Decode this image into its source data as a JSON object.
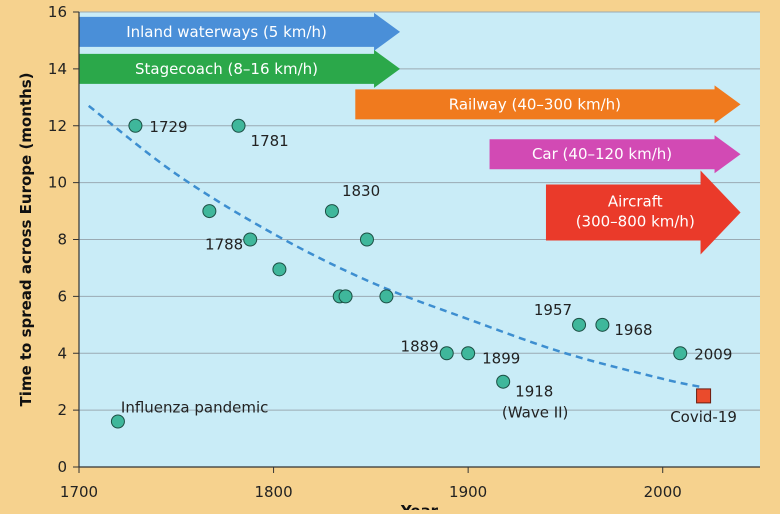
{
  "chart_data": {
    "type": "scatter",
    "xlabel": "Year",
    "ylabel": "Time to spread across Europe (months)",
    "xlim": [
      1700,
      2050
    ],
    "ylim": [
      0,
      16
    ],
    "xticks": [
      1700,
      1800,
      1900,
      2000
    ],
    "yticks": [
      0,
      2,
      4,
      6,
      8,
      10,
      12,
      14,
      16
    ],
    "grid": "horizontal",
    "colors": {
      "plot_background": "#c9ecf7",
      "outer_background": "#f6d28e",
      "point_fill": "#3fb79b",
      "covid_fill": "#ea4b2c",
      "trend_line": "#3d8ed0",
      "gridline": "#9aaab3"
    },
    "series": [
      {
        "name": "Influenza pandemic",
        "points": [
          {
            "x": 1720,
            "y": 1.6,
            "label": "Influenza pandemic"
          },
          {
            "x": 1729,
            "y": 12.0,
            "label": "1729"
          },
          {
            "x": 1767,
            "y": 9.0,
            "label": ""
          },
          {
            "x": 1782,
            "y": 12.0,
            "label": "1781"
          },
          {
            "x": 1788,
            "y": 8.0,
            "label": "1788"
          },
          {
            "x": 1803,
            "y": 6.95,
            "label": ""
          },
          {
            "x": 1830,
            "y": 9.0,
            "label": "1830"
          },
          {
            "x": 1834,
            "y": 6.0,
            "label": ""
          },
          {
            "x": 1837,
            "y": 6.0,
            "label": ""
          },
          {
            "x": 1848,
            "y": 8.0,
            "label": ""
          },
          {
            "x": 1858,
            "y": 6.0,
            "label": ""
          },
          {
            "x": 1889,
            "y": 4.0,
            "label": "1889"
          },
          {
            "x": 1900,
            "y": 4.0,
            "label": "1899"
          },
          {
            "x": 1918,
            "y": 3.0,
            "label": "1918"
          },
          {
            "x": 1957,
            "y": 5.0,
            "label": "1957"
          },
          {
            "x": 1969,
            "y": 5.0,
            "label": "1968"
          },
          {
            "x": 2009,
            "y": 4.0,
            "label": "2009"
          }
        ]
      },
      {
        "name": "Covid-19",
        "points": [
          {
            "x": 2021,
            "y": 2.5,
            "label": "Covid-19"
          }
        ]
      }
    ],
    "annotations": {
      "wave": "(Wave II)"
    },
    "trend": {
      "style": "dashed",
      "points": [
        {
          "x": 1705,
          "y": 12.7
        },
        {
          "x": 1750,
          "y": 10.3
        },
        {
          "x": 1800,
          "y": 8.2
        },
        {
          "x": 1850,
          "y": 6.5
        },
        {
          "x": 1900,
          "y": 5.2
        },
        {
          "x": 1950,
          "y": 4.0
        },
        {
          "x": 2000,
          "y": 3.1
        },
        {
          "x": 2021,
          "y": 2.8
        }
      ]
    },
    "transport_arrows": [
      {
        "label": "Inland waterways (5 km/h)",
        "color": "#4a8fd8",
        "x_start": 1700,
        "x_end": 1865,
        "y": 15.3
      },
      {
        "label": "Stagecoach (8–16 km/h)",
        "color": "#2ba84a",
        "x_start": 1700,
        "x_end": 1865,
        "y": 14.0
      },
      {
        "label": "Railway (40–300 km/h)",
        "color": "#f07a1e",
        "x_start": 1842,
        "x_end": 2040,
        "y": 12.75
      },
      {
        "label": "Car (40–120 km/h)",
        "color": "#d24ab4",
        "x_start": 1911,
        "x_end": 2040,
        "y": 11.0
      },
      {
        "label": "Aircraft (300–800 km/h)",
        "label_lines": [
          "Aircraft",
          "(300–800 km/h)"
        ],
        "color": "#ea3a2a",
        "x_start": 1940,
        "x_end": 2040,
        "y": 8.95
      }
    ]
  }
}
